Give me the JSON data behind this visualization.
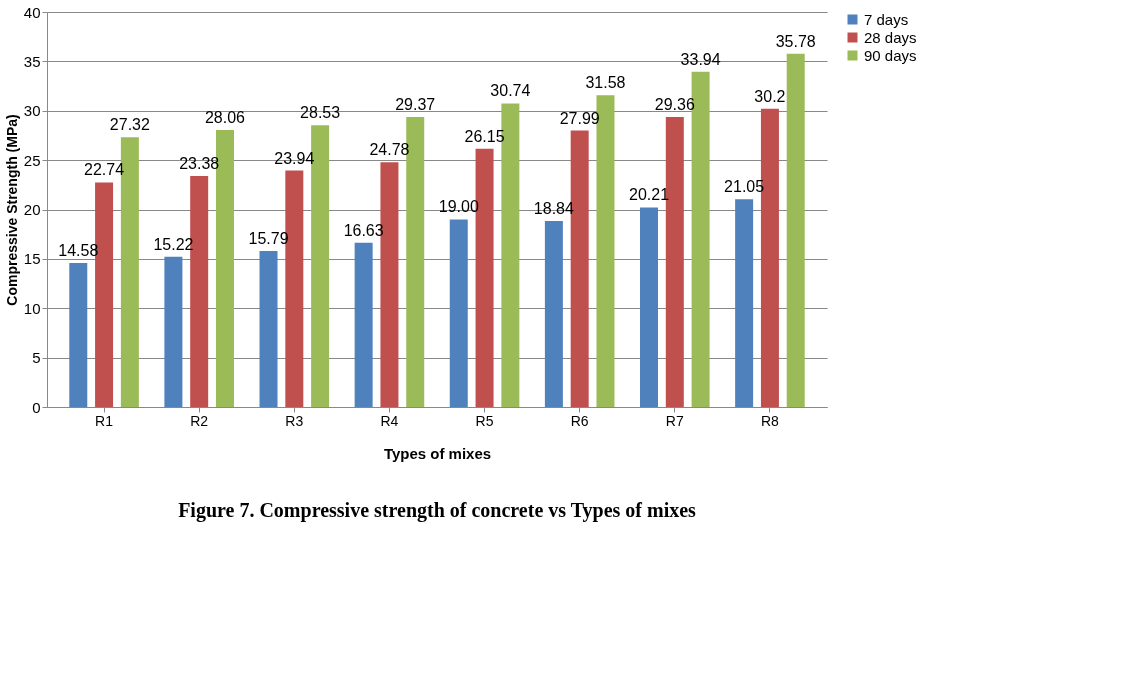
{
  "chart_data": {
    "type": "bar",
    "xlabel": "Types of mixes",
    "ylabel": "Compressive Strength (MPa)",
    "categories": [
      "R1",
      "R2",
      "R3",
      "R4",
      "R5",
      "R6",
      "R7",
      "R8"
    ],
    "series": [
      {
        "name": "7 days",
        "color": "#4f81bd",
        "values": [
          14.58,
          15.22,
          15.79,
          16.63,
          19.0,
          18.84,
          20.21,
          21.05
        ],
        "value_labels": [
          "14.58",
          "15.22",
          "15.79",
          "16.63",
          "19.00",
          "18.84",
          "20.21",
          "21.05"
        ]
      },
      {
        "name": "28 days",
        "color": "#c0504d",
        "values": [
          22.74,
          23.38,
          23.94,
          24.78,
          26.15,
          27.99,
          29.36,
          30.2
        ],
        "value_labels": [
          "22.74",
          "23.38",
          "23.94",
          "24.78",
          "26.15",
          "27.99",
          "29.36",
          "30.2"
        ]
      },
      {
        "name": "90 days",
        "color": "#9bbb59",
        "values": [
          27.32,
          28.06,
          28.53,
          29.37,
          30.74,
          31.58,
          33.94,
          35.78
        ],
        "value_labels": [
          "27.32",
          "28.06",
          "28.53",
          "29.37",
          "30.74",
          "31.58",
          "33.94",
          "35.78"
        ]
      }
    ],
    "ylim": [
      0,
      40
    ],
    "yticks": [
      0,
      5,
      10,
      15,
      20,
      25,
      30,
      35,
      40
    ],
    "grid": "y",
    "legend": "right",
    "annotations": [
      "Figure 7. Compressive strength of concrete vs Types of mixes"
    ]
  }
}
